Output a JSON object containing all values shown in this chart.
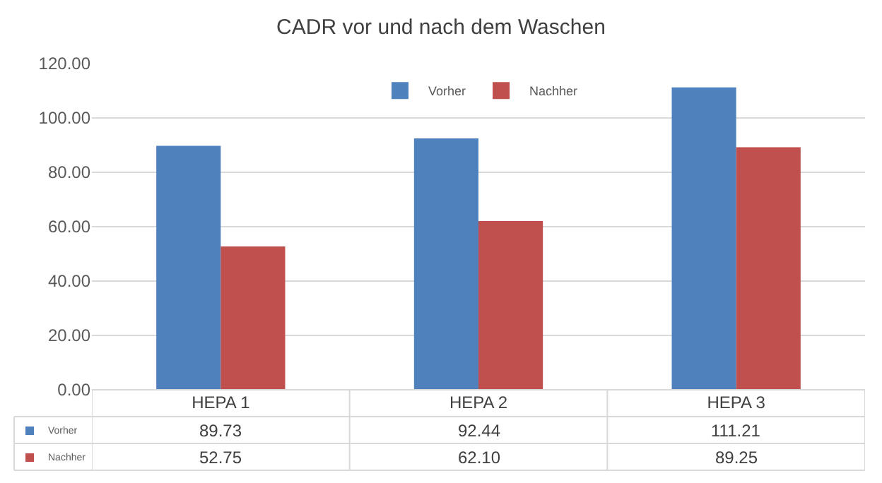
{
  "chart_data": {
    "type": "bar",
    "title": "CADR vor und nach dem Waschen",
    "categories": [
      "HEPA 1",
      "HEPA 2",
      "HEPA 3"
    ],
    "series": [
      {
        "name": "Vorher",
        "color": "#4f81bd",
        "values": [
          89.73,
          92.44,
          111.21
        ],
        "value_labels": [
          "89.73",
          "92.44",
          "111.21"
        ]
      },
      {
        "name": "Nachher",
        "color": "#c0504d",
        "values": [
          52.75,
          62.1,
          89.25
        ],
        "value_labels": [
          "52.75",
          "62.10",
          "89.25"
        ]
      }
    ],
    "ylim": [
      0,
      120
    ],
    "yticks": [
      {
        "value": 0,
        "label": "0.00"
      },
      {
        "value": 20,
        "label": "20.00"
      },
      {
        "value": 40,
        "label": "40.00"
      },
      {
        "value": 60,
        "label": "60.00"
      },
      {
        "value": 80,
        "label": "80.00"
      },
      {
        "value": 100,
        "label": "100.00"
      },
      {
        "value": 120,
        "label": "120.00"
      }
    ],
    "grid": "y",
    "legend": "top"
  }
}
